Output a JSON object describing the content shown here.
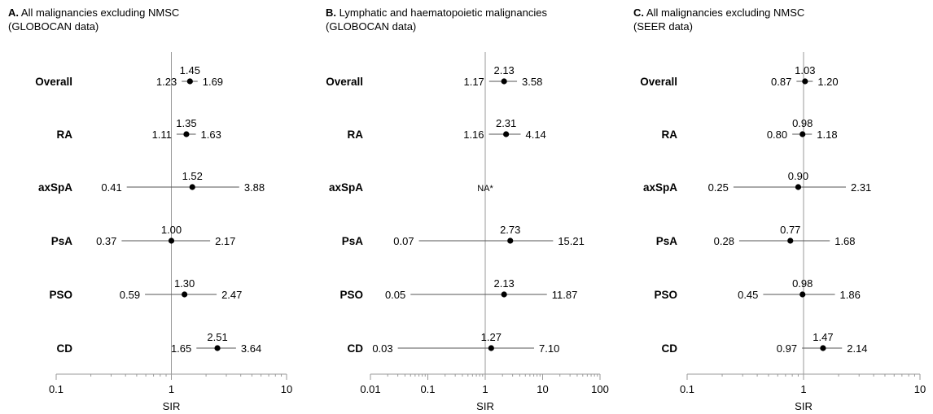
{
  "chart_data": [
    {
      "type": "forest",
      "title_lead": "A.",
      "title_line1": "All malignancies excluding NMSC",
      "title_line2": "(GLOBOCAN data)",
      "xlabel": "SIR",
      "xscale": "log",
      "xlim": [
        0.1,
        10
      ],
      "ticks": [
        0.1,
        1,
        10
      ],
      "tick_labels": [
        "0.1",
        "1",
        "10"
      ],
      "reference_line": 1,
      "rows": [
        {
          "label": "Overall",
          "est": 1.45,
          "lo": 1.23,
          "hi": 1.69,
          "est_text": "1.45",
          "lo_text": "1.23",
          "hi_text": "1.69"
        },
        {
          "label": "RA",
          "est": 1.35,
          "lo": 1.11,
          "hi": 1.63,
          "est_text": "1.35",
          "lo_text": "1.11",
          "hi_text": "1.63"
        },
        {
          "label": "axSpA",
          "est": 1.52,
          "lo": 0.41,
          "hi": 3.88,
          "est_text": "1.52",
          "lo_text": "0.41",
          "hi_text": "3.88"
        },
        {
          "label": "PsA",
          "est": 1.0,
          "lo": 0.37,
          "hi": 2.17,
          "est_text": "1.00",
          "lo_text": "0.37",
          "hi_text": "2.17"
        },
        {
          "label": "PSO",
          "est": 1.3,
          "lo": 0.59,
          "hi": 2.47,
          "est_text": "1.30",
          "lo_text": "0.59",
          "hi_text": "2.47"
        },
        {
          "label": "CD",
          "est": 2.51,
          "lo": 1.65,
          "hi": 3.64,
          "est_text": "2.51",
          "lo_text": "1.65",
          "hi_text": "3.64"
        }
      ]
    },
    {
      "type": "forest",
      "title_lead": "B.",
      "title_line1": "Lymphatic and haematopoietic malignancies",
      "title_line2": "(GLOBOCAN data)",
      "xlabel": "SIR",
      "xscale": "log",
      "xlim": [
        0.01,
        100
      ],
      "ticks": [
        0.01,
        0.1,
        1,
        10,
        100
      ],
      "tick_labels": [
        "0.01",
        "0.1",
        "1",
        "10",
        "100"
      ],
      "reference_line": 1,
      "rows": [
        {
          "label": "Overall",
          "est": 2.13,
          "lo": 1.17,
          "hi": 3.58,
          "est_text": "2.13",
          "lo_text": "1.17",
          "hi_text": "3.58"
        },
        {
          "label": "RA",
          "est": 2.31,
          "lo": 1.16,
          "hi": 4.14,
          "est_text": "2.31",
          "lo_text": "1.16",
          "hi_text": "4.14"
        },
        {
          "label": "axSpA",
          "na": true,
          "na_text": "NA*"
        },
        {
          "label": "PsA",
          "est": 2.73,
          "lo": 0.07,
          "hi": 15.21,
          "est_text": "2.73",
          "lo_text": "0.07",
          "hi_text": "15.21"
        },
        {
          "label": "PSO",
          "est": 2.13,
          "lo": 0.05,
          "hi": 11.87,
          "est_text": "2.13",
          "lo_text": "0.05",
          "hi_text": "11.87"
        },
        {
          "label": "CD",
          "est": 1.27,
          "lo": 0.03,
          "hi": 7.1,
          "est_text": "1.27",
          "lo_text": "0.03",
          "hi_text": "7.10"
        }
      ]
    },
    {
      "type": "forest",
      "title_lead": "C.",
      "title_line1": "All malignancies excluding NMSC",
      "title_line2": "(SEER data)",
      "xlabel": "SIR",
      "xscale": "log",
      "xlim": [
        0.1,
        10
      ],
      "ticks": [
        0.1,
        1,
        10
      ],
      "tick_labels": [
        "0.1",
        "1",
        "10"
      ],
      "reference_line": 1,
      "rows": [
        {
          "label": "Overall",
          "est": 1.03,
          "lo": 0.87,
          "hi": 1.2,
          "est_text": "1.03",
          "lo_text": "0.87",
          "hi_text": "1.20"
        },
        {
          "label": "RA",
          "est": 0.98,
          "lo": 0.8,
          "hi": 1.18,
          "est_text": "0.98",
          "lo_text": "0.80",
          "hi_text": "1.18"
        },
        {
          "label": "axSpA",
          "est": 0.9,
          "lo": 0.25,
          "hi": 2.31,
          "est_text": "0.90",
          "lo_text": "0.25",
          "hi_text": "2.31"
        },
        {
          "label": "PsA",
          "est": 0.77,
          "lo": 0.28,
          "hi": 1.68,
          "est_text": "0.77",
          "lo_text": "0.28",
          "hi_text": "1.68"
        },
        {
          "label": "PSO",
          "est": 0.98,
          "lo": 0.45,
          "hi": 1.86,
          "est_text": "0.98",
          "lo_text": "0.45",
          "hi_text": "1.86"
        },
        {
          "label": "CD",
          "est": 1.47,
          "lo": 0.97,
          "hi": 2.14,
          "est_text": "1.47",
          "lo_text": "0.97",
          "hi_text": "2.14"
        }
      ]
    }
  ]
}
